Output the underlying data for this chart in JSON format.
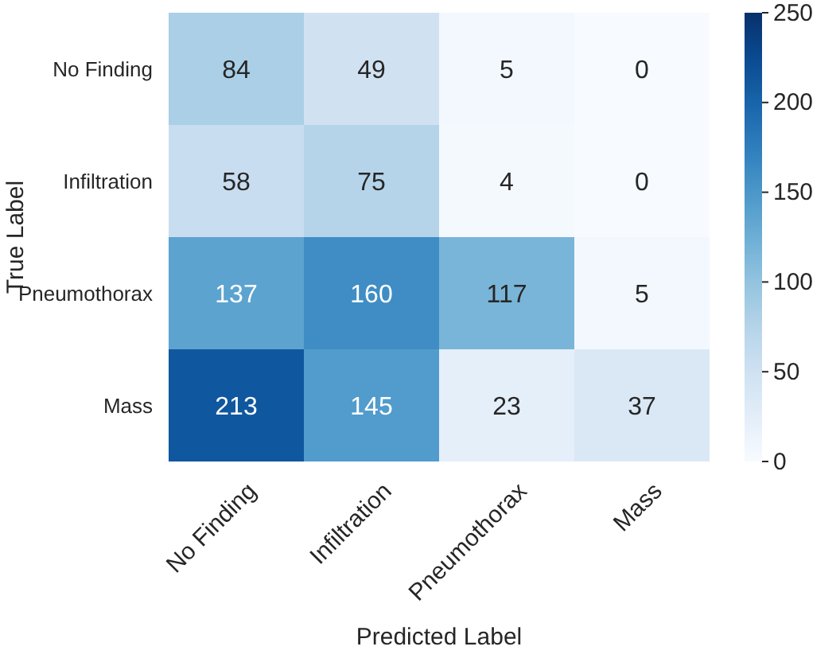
{
  "chart_data": {
    "type": "heatmap",
    "xlabel": "Predicted Label",
    "ylabel": "True Label",
    "categories": [
      "No Finding",
      "Infiltration",
      "Pneumothorax",
      "Mass"
    ],
    "y_categories": [
      "No Finding",
      "Infiltration",
      "Pneumothorax",
      "Mass"
    ],
    "cells": [
      [
        84,
        49,
        5,
        0
      ],
      [
        58,
        75,
        4,
        0
      ],
      [
        137,
        160,
        117,
        5
      ],
      [
        213,
        145,
        23,
        37
      ]
    ],
    "data_labels": true,
    "clim": [
      0,
      250
    ],
    "cticks": [
      0,
      50,
      100,
      150,
      200,
      250
    ]
  }
}
